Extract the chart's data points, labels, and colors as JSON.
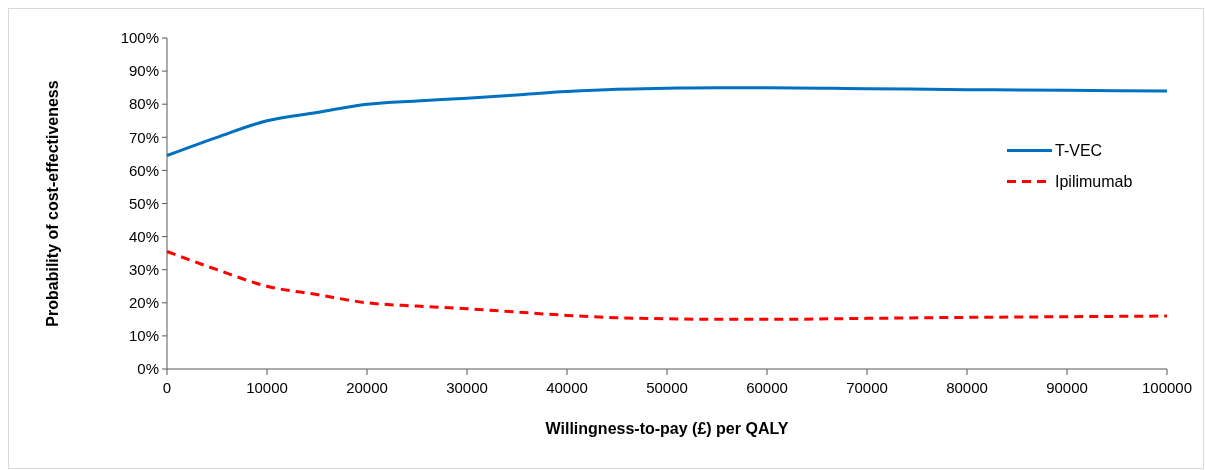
{
  "chart_data": {
    "type": "line",
    "xlabel": "Willingness-to-pay (£) per QALY",
    "ylabel": "Probability of cost-effectiveness",
    "x": [
      0,
      5000,
      10000,
      15000,
      20000,
      25000,
      30000,
      35000,
      40000,
      45000,
      50000,
      55000,
      60000,
      70000,
      80000,
      90000,
      100000
    ],
    "series": [
      {
        "name": "T-VEC",
        "color": "#0070c0",
        "line_style": "solid",
        "values": [
          64.5,
          70,
          75,
          77.5,
          80,
          81,
          81.8,
          82.8,
          83.8,
          84.5,
          84.8,
          85,
          85,
          84.7,
          84.4,
          84.2,
          84
        ]
      },
      {
        "name": "Ipilimumab",
        "color": "#ff0000",
        "line_style": "dashed",
        "values": [
          35.5,
          30,
          25,
          22.5,
          20,
          19,
          18.2,
          17.2,
          16.2,
          15.5,
          15.2,
          15,
          15,
          15.3,
          15.6,
          15.8,
          16
        ]
      }
    ],
    "xlim": [
      0,
      100000
    ],
    "xticks": [
      0,
      10000,
      20000,
      30000,
      40000,
      50000,
      60000,
      70000,
      80000,
      90000,
      100000
    ],
    "ylim": [
      0,
      100
    ],
    "yticks": [
      {
        "value": 0,
        "label": "0%"
      },
      {
        "value": 10,
        "label": "10%"
      },
      {
        "value": 20,
        "label": "20%"
      },
      {
        "value": 30,
        "label": "30%"
      },
      {
        "value": 40,
        "label": "40%"
      },
      {
        "value": 50,
        "label": "50%"
      },
      {
        "value": 60,
        "label": "60%"
      },
      {
        "value": 70,
        "label": "70%"
      },
      {
        "value": 80,
        "label": "80%"
      },
      {
        "value": 90,
        "label": "90%"
      },
      {
        "value": 100,
        "label": "100%"
      }
    ],
    "grid": false,
    "legend": "right",
    "marker": "none"
  }
}
